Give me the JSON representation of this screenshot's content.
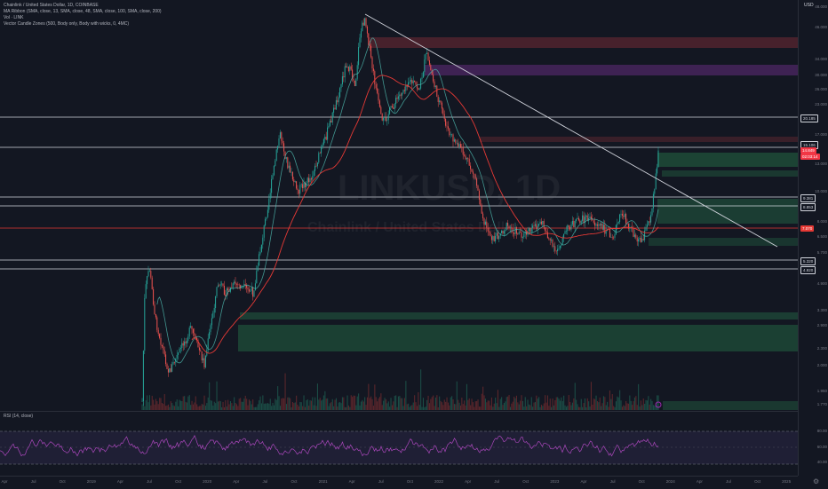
{
  "legend": {
    "symbol_line": "Chainlink / United States Dollar, 1D, COINBASE",
    "ma_line": "MA Ribbon (SMA, close, 13, SMA, close, 48, SMA, close, 100, SMA, close, 200)",
    "vol_line": "Vol · LINK",
    "vector_line": "Vector Candle Zones (500, Body only, Body with wicks, 0, 4MC)"
  },
  "watermark": {
    "ticker": "LINKUSD, 1D",
    "name": "Chainlink / United States Dollar"
  },
  "rsi": {
    "label": "RSI (14, close)",
    "upper": 70,
    "lower": 30
  },
  "currency_button": "USD",
  "price_axis_labels": [
    "48.000",
    "46.000",
    "34.000",
    "30.000",
    "26.000",
    "23.000",
    "17.000",
    "13.000",
    "10.000",
    "8.000",
    "6.500",
    "5.700",
    "4.900",
    "3.300",
    "2.900",
    "2.300",
    "2.000",
    "1.950",
    "1.770"
  ],
  "rsi_axis_labels": [
    "80.00",
    "60.00",
    "40.00"
  ],
  "price_tags": {
    "h_20": "20.185",
    "h_15": "15.106",
    "last": "14.849",
    "countdown": "02:03:14",
    "h_9": "9.381",
    "h_8": "8.853",
    "red": "7.070",
    "h_5": "5.320",
    "h_4": "4.920"
  },
  "time_labels": [
    "Apr",
    "Jul",
    "Oct",
    "2019",
    "Apr",
    "Jul",
    "Oct",
    "2020",
    "Apr",
    "Jul",
    "Oct",
    "2021",
    "Apr",
    "Jul",
    "Oct",
    "2022",
    "Apr",
    "Jul",
    "Oct",
    "2023",
    "Apr",
    "Jul",
    "Oct",
    "2024",
    "Apr",
    "Jul",
    "Oct",
    "2025"
  ],
  "colors": {
    "background": "#131722",
    "up_zone": "#1f4f3a",
    "down_zone_red": "#5a2630",
    "down_zone_purple": "#4a2660",
    "ma_red": "#e53935",
    "ma_teal": "#4db6ac",
    "rsi_line": "#7e57c2",
    "last_price": "#f23645"
  }
}
